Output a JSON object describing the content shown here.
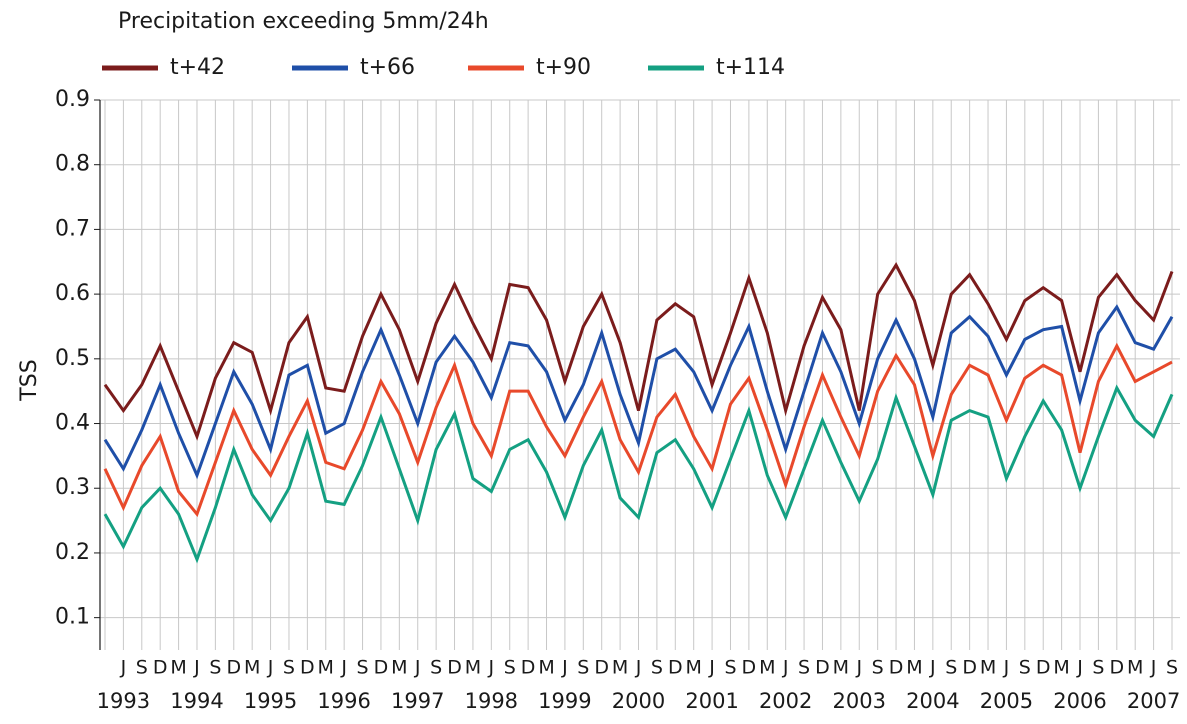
{
  "chart_data": {
    "type": "line",
    "title": "Precipitation exceeding 5mm/24h",
    "y_label": "TSS",
    "categories": [
      null,
      "J",
      "S",
      "D",
      "M",
      "J",
      "S",
      "D",
      "M",
      "J",
      "S",
      "D",
      "M",
      "J",
      "S",
      "D",
      "M",
      "J",
      "S",
      "D",
      "M",
      "J",
      "S",
      "D",
      "M",
      "J",
      "S",
      "D",
      "M",
      "J",
      "S",
      "D",
      "M",
      "J",
      "S",
      "D",
      "M",
      "J",
      "S",
      "D",
      "M",
      "J",
      "S",
      "D",
      "M",
      "J",
      "S",
      "D",
      "M",
      "J",
      "S",
      "D",
      "M",
      "J",
      "S",
      "D",
      "M",
      "J",
      "S"
    ],
    "year_labels": [
      "1993",
      "1994",
      "1995",
      "1996",
      "1997",
      "1998",
      "1999",
      "2000",
      "2001",
      "2002",
      "2003",
      "2004",
      "2005",
      "2006",
      "2007"
    ],
    "series": [
      {
        "name": "t+42",
        "color": "#7b1c1c",
        "values": [
          0.46,
          0.42,
          0.46,
          0.52,
          0.45,
          0.38,
          0.47,
          0.525,
          0.51,
          0.42,
          0.525,
          0.565,
          0.455,
          0.45,
          0.535,
          0.6,
          0.545,
          0.465,
          0.555,
          0.615,
          0.555,
          0.5,
          0.615,
          0.61,
          0.56,
          0.465,
          0.55,
          0.6,
          0.525,
          0.42,
          0.56,
          0.585,
          0.565,
          0.46,
          0.54,
          0.625,
          0.54,
          0.42,
          0.52,
          0.595,
          0.545,
          0.42,
          0.6,
          0.645,
          0.59,
          0.49,
          0.6,
          0.63,
          0.585,
          0.53,
          0.59,
          0.61,
          0.59,
          0.48,
          0.595,
          0.63,
          0.59,
          0.56,
          0.635
        ]
      },
      {
        "name": "t+66",
        "color": "#1f4fa8",
        "values": [
          0.375,
          0.33,
          0.39,
          0.46,
          0.385,
          0.32,
          0.4,
          0.48,
          0.43,
          0.36,
          0.475,
          0.49,
          0.385,
          0.4,
          0.48,
          0.545,
          0.475,
          0.4,
          0.495,
          0.535,
          0.495,
          0.44,
          0.525,
          0.52,
          0.48,
          0.405,
          0.46,
          0.54,
          0.445,
          0.37,
          0.5,
          0.515,
          0.48,
          0.42,
          0.49,
          0.55,
          0.45,
          0.36,
          0.45,
          0.54,
          0.48,
          0.4,
          0.5,
          0.56,
          0.5,
          0.41,
          0.54,
          0.565,
          0.535,
          0.475,
          0.53,
          0.545,
          0.55,
          0.435,
          0.54,
          0.58,
          0.525,
          0.515,
          0.565
        ]
      },
      {
        "name": "t+90",
        "color": "#e8492b",
        "values": [
          0.33,
          0.27,
          0.335,
          0.38,
          0.295,
          0.26,
          0.34,
          0.42,
          0.36,
          0.32,
          0.38,
          0.435,
          0.34,
          0.33,
          0.39,
          0.465,
          0.415,
          0.34,
          0.425,
          0.49,
          0.4,
          0.35,
          0.45,
          0.45,
          0.395,
          0.35,
          0.41,
          0.465,
          0.375,
          0.325,
          0.41,
          0.445,
          0.38,
          0.33,
          0.43,
          0.47,
          0.39,
          0.305,
          0.395,
          0.475,
          0.41,
          0.35,
          0.45,
          0.505,
          0.46,
          0.35,
          0.445,
          0.49,
          0.475,
          0.405,
          0.47,
          0.49,
          0.475,
          0.355,
          0.465,
          0.52,
          0.465,
          0.48,
          0.495
        ]
      },
      {
        "name": "t+114",
        "color": "#14a082",
        "values": [
          0.26,
          0.21,
          0.27,
          0.3,
          0.26,
          0.19,
          0.27,
          0.36,
          0.29,
          0.25,
          0.3,
          0.385,
          0.28,
          0.275,
          0.335,
          0.41,
          0.33,
          0.25,
          0.36,
          0.415,
          0.315,
          0.295,
          0.36,
          0.375,
          0.325,
          0.255,
          0.335,
          0.39,
          0.285,
          0.255,
          0.355,
          0.375,
          0.33,
          0.27,
          0.345,
          0.42,
          0.32,
          0.255,
          0.33,
          0.405,
          0.34,
          0.28,
          0.345,
          0.44,
          0.365,
          0.29,
          0.405,
          0.42,
          0.41,
          0.315,
          0.38,
          0.435,
          0.39,
          0.3,
          0.38,
          0.455,
          0.405,
          0.38,
          0.445
        ]
      }
    ],
    "ylim": [
      0.05,
      0.9
    ],
    "yticks": [
      0.1,
      0.2,
      0.3,
      0.4,
      0.5,
      0.6,
      0.7,
      0.8,
      0.9
    ],
    "grid": true
  }
}
